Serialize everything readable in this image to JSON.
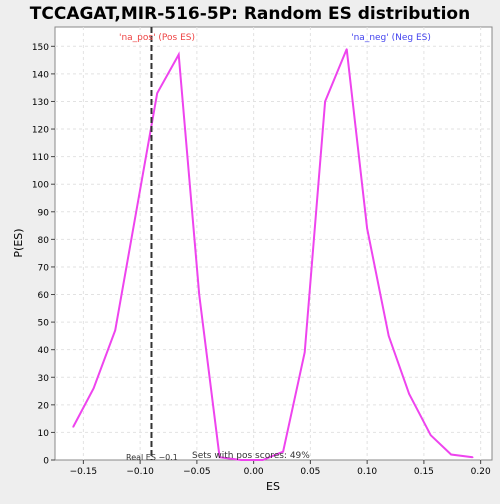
{
  "chart_data": {
    "type": "line",
    "title": "TCCAGAT,MIR-516-5P: Random ES distribution",
    "xlabel": "ES",
    "ylabel": "P(ES)",
    "xlim": [
      -0.175,
      0.21
    ],
    "ylim": [
      0,
      157
    ],
    "xticks": [
      -0.15,
      -0.1,
      -0.05,
      0.0,
      0.05,
      0.1,
      0.15,
      0.2
    ],
    "xtick_labels": [
      "−0.15",
      "−0.10",
      "−0.05",
      "0.00",
      "0.05",
      "0.10",
      "0.15",
      "0.20"
    ],
    "yticks": [
      0,
      10,
      20,
      30,
      40,
      50,
      60,
      70,
      80,
      90,
      100,
      110,
      120,
      130,
      140,
      150
    ],
    "ytick_labels": [
      "0",
      "10",
      "20",
      "30",
      "40",
      "50",
      "60",
      "70",
      "80",
      "90",
      "100",
      "110",
      "120",
      "130",
      "140",
      "150"
    ],
    "grid": true,
    "series": [
      {
        "color": "#ee44ee",
        "x": [
          -0.159,
          -0.141,
          -0.122,
          -0.085,
          -0.066,
          -0.048,
          -0.03,
          -0.011,
          0.008,
          0.026,
          0.045,
          0.063,
          0.082,
          0.1,
          0.119,
          0.137,
          0.156,
          0.174,
          0.193
        ],
        "y": [
          12,
          26,
          47,
          133,
          147,
          60,
          1,
          0,
          0,
          3,
          39,
          130,
          149,
          84,
          45,
          24,
          9,
          2,
          1
        ]
      }
    ],
    "annotations": {
      "pos_label": "'na_pos' (Pos ES)",
      "pos_color": "#ee4444",
      "neg_label": "'na_neg' (Neg ES)",
      "neg_color": "#4444ee",
      "real_es_label": "Real ES −0.1",
      "real_es_x": -0.09,
      "footer_text": "Sets with pos scores: 49%"
    }
  }
}
